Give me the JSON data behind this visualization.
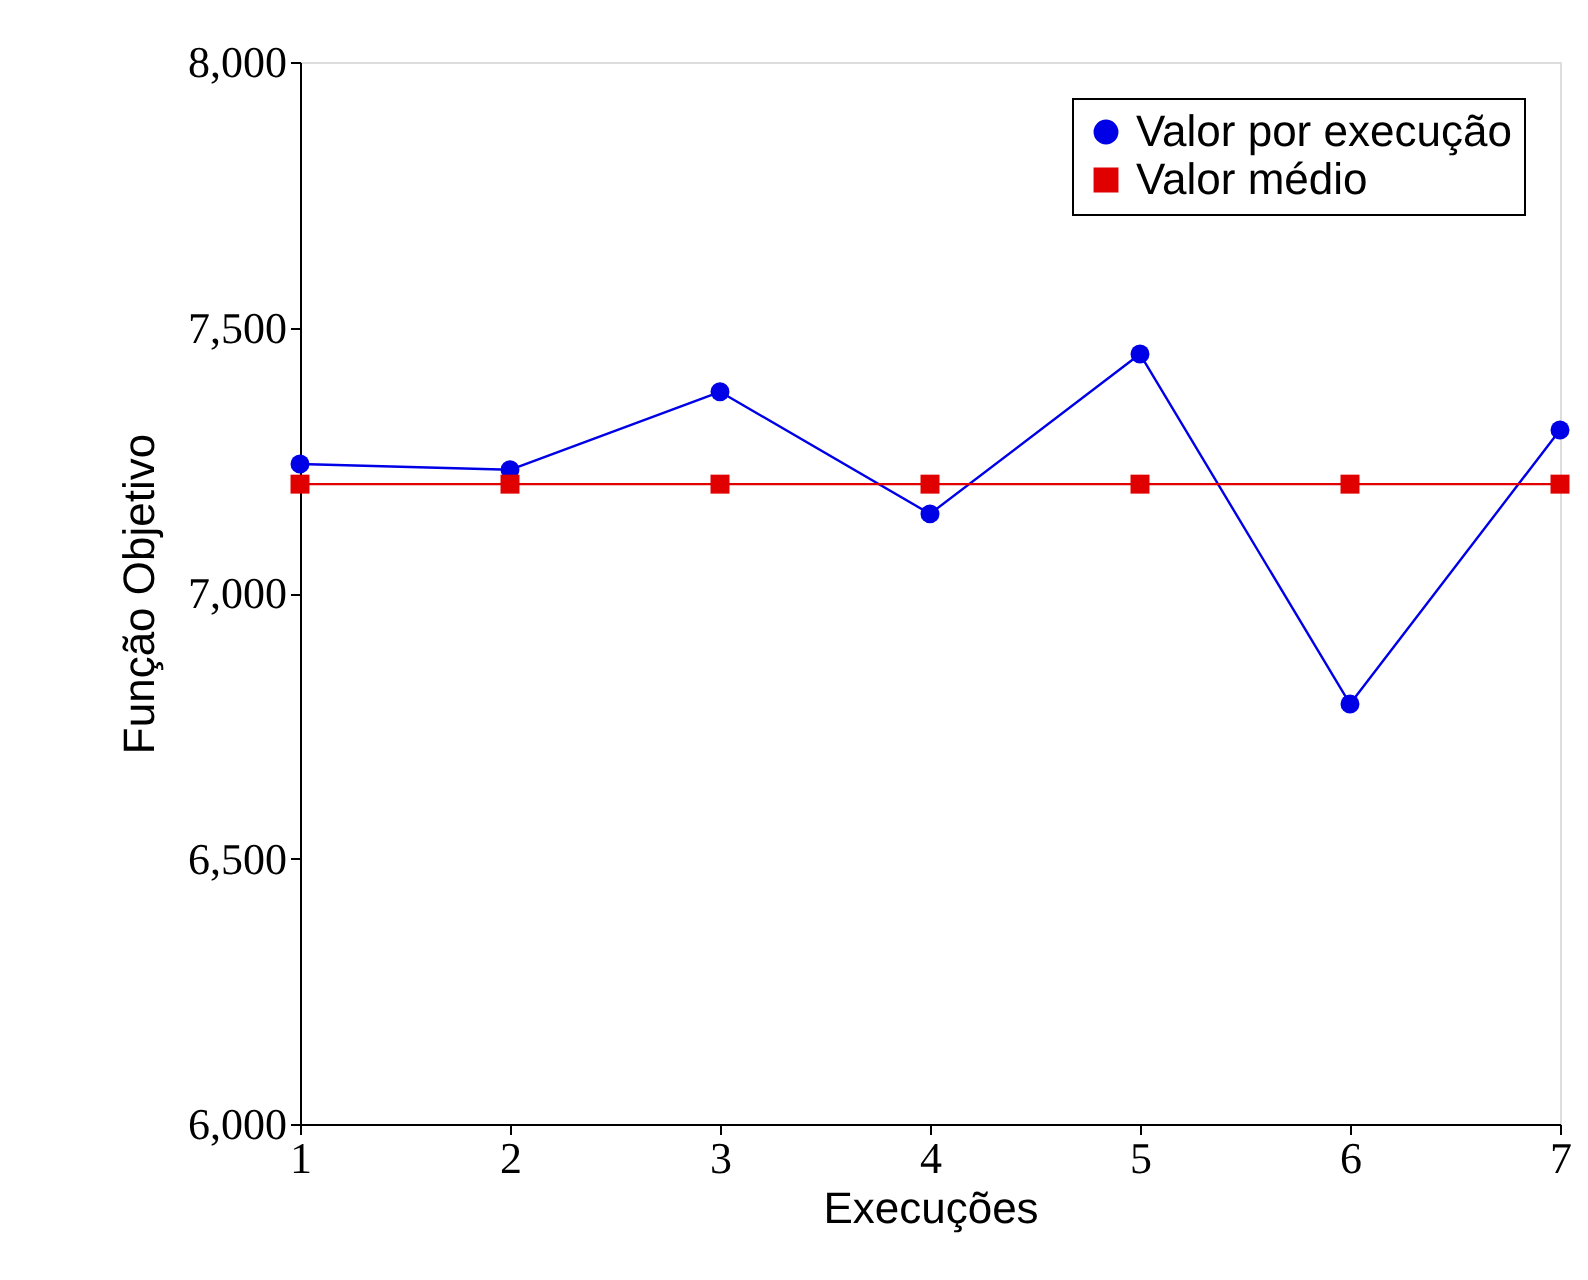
{
  "chart_data": {
    "type": "line",
    "xlabel": "Execuções",
    "ylabel": "Função Objetivo",
    "x": [
      1,
      2,
      3,
      4,
      5,
      6,
      7
    ],
    "series": [
      {
        "name": "Valor por execução",
        "color": "#0000e6",
        "marker": "circle",
        "values": [
          7243,
          7232,
          7379,
          7149,
          7450,
          6791,
          7307
        ]
      },
      {
        "name": "Valor médio",
        "color": "#e00000",
        "marker": "square",
        "values": [
          7205,
          7205,
          7205,
          7205,
          7205,
          7205,
          7205
        ]
      }
    ],
    "xlim": [
      1,
      7
    ],
    "xticks": [
      1,
      2,
      3,
      4,
      5,
      6,
      7
    ],
    "ylim": [
      6000,
      8000
    ],
    "yticks": [
      {
        "value": 6000,
        "label": "6,000"
      },
      {
        "value": 6500,
        "label": "6,500"
      },
      {
        "value": 7000,
        "label": "7,000"
      },
      {
        "value": 7500,
        "label": "7,500"
      },
      {
        "value": 8000,
        "label": "8,000"
      }
    ],
    "grid": false,
    "legend": "top right",
    "line_style": "solid"
  }
}
